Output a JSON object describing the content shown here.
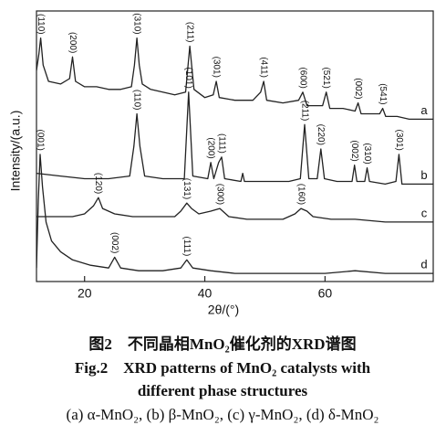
{
  "chart_data": {
    "type": "line",
    "x_label": "2θ/(°)",
    "y_label": "Intensity/(a.u.)",
    "xlim": [
      12,
      78
    ],
    "xticks": [
      20,
      40,
      60
    ],
    "ylim": [
      0,
      100
    ],
    "series": [
      {
        "name": "a",
        "color": "#222222",
        "x": [
          12,
          12.4,
          12.7,
          13.1,
          14,
          16,
          17.5,
          18,
          18.5,
          20,
          22,
          24,
          26,
          27.8,
          28.3,
          28.7,
          29.1,
          29.6,
          31,
          33,
          35,
          36.8,
          37.5,
          38.2,
          40,
          41.4,
          41.9,
          42.4,
          45,
          48,
          49.3,
          49.8,
          50.3,
          53,
          55.6,
          56.3,
          57,
          59.6,
          60.2,
          60.8,
          63,
          65,
          65.5,
          66,
          68,
          69.1,
          69.6,
          70.1,
          72,
          74,
          76,
          78
        ],
        "values": [
          78,
          84,
          90,
          80,
          74,
          73,
          75,
          83,
          74,
          72,
          72,
          71,
          71,
          72,
          80,
          90,
          80,
          73,
          71,
          70,
          69,
          70,
          87,
          71,
          68,
          69,
          74,
          68,
          67,
          67,
          70,
          74,
          67,
          66,
          67,
          70,
          65,
          65,
          70,
          64,
          64,
          63,
          66,
          62,
          62,
          62,
          64,
          61,
          61,
          60,
          60,
          60
        ],
        "peaks": [
          {
            "label": "(110)",
            "x": 12.7
          },
          {
            "label": "(200)",
            "x": 18
          },
          {
            "label": "(310)",
            "x": 28.7
          },
          {
            "label": "(211)",
            "x": 37.5
          },
          {
            "label": "(301)",
            "x": 41.9
          },
          {
            "label": "(411)",
            "x": 49.8
          },
          {
            "label": "(600)",
            "x": 56.3
          },
          {
            "label": "(521)",
            "x": 60.2
          },
          {
            "label": "(002)",
            "x": 65.5
          },
          {
            "label": "(541)",
            "x": 69.6
          }
        ]
      },
      {
        "name": "b",
        "color": "#222222",
        "x": [
          12,
          16,
          20,
          24,
          27.5,
          28.2,
          28.7,
          29.2,
          30,
          33,
          36.6,
          37.3,
          38,
          40.5,
          41,
          41.5,
          42.3,
          42.8,
          43.3,
          46,
          46.3,
          46.6,
          50,
          54,
          55.9,
          56.6,
          57.3,
          58.7,
          59.3,
          59.9,
          62,
          64.5,
          64.9,
          65.3,
          66.6,
          67,
          67.4,
          70,
          71.8,
          72.3,
          72.8,
          75,
          78
        ],
        "values": [
          40,
          39,
          38,
          38,
          39,
          50,
          62,
          50,
          39,
          38,
          38,
          70,
          39,
          38,
          44,
          38,
          44,
          46,
          38,
          37,
          40,
          37,
          37,
          37,
          38,
          58,
          38,
          38,
          49,
          38,
          37,
          37,
          43,
          37,
          37,
          42,
          37,
          36,
          37,
          47,
          36,
          36,
          36
        ],
        "peaks": [
          {
            "label": "(110)",
            "x": 28.7
          },
          {
            "label": "(101)",
            "x": 37.3
          },
          {
            "label": "(200)",
            "x": 41
          },
          {
            "label": "(111)",
            "x": 42.8
          },
          {
            "label": "(211)",
            "x": 56.6
          },
          {
            "label": "(220)",
            "x": 59.3
          },
          {
            "label": "(002)",
            "x": 64.9
          },
          {
            "label": "(310)",
            "x": 67
          },
          {
            "label": "(301)",
            "x": 72.3
          }
        ]
      },
      {
        "name": "c",
        "color": "#222222",
        "x": [
          12,
          15,
          18,
          20,
          21.5,
          22.3,
          23,
          25,
          28,
          30,
          33,
          35,
          36,
          37,
          37.8,
          39,
          41,
          42.5,
          44,
          47,
          50,
          53,
          55,
          56,
          57,
          58,
          61,
          65,
          70,
          75,
          78
        ],
        "values": [
          24,
          24,
          24,
          25,
          28,
          31,
          27,
          25,
          24,
          24,
          24,
          24,
          26,
          29,
          27,
          25,
          26,
          27,
          24,
          23,
          23,
          23,
          25,
          27,
          26,
          24,
          23,
          23,
          22,
          22,
          22
        ],
        "peaks": [
          {
            "label": "(120)",
            "x": 22.3
          },
          {
            "label": "(131)",
            "x": 37
          },
          {
            "label": "(300)",
            "x": 42.5
          },
          {
            "label": "(160)",
            "x": 56
          }
        ]
      },
      {
        "name": "d",
        "color": "#222222",
        "x": [
          12,
          12.3,
          12.6,
          13,
          13.6,
          14.5,
          16,
          18,
          21,
          24,
          25,
          26,
          29,
          33,
          36,
          37,
          38,
          41,
          45,
          50,
          55,
          60,
          65,
          70,
          75,
          78
        ],
        "values": [
          5,
          30,
          47,
          35,
          22,
          15,
          11,
          8,
          6,
          5,
          9,
          5,
          4,
          4,
          5,
          8,
          5,
          4,
          3,
          3,
          3,
          3,
          4,
          3,
          3,
          3
        ],
        "peaks": [
          {
            "label": "(001)",
            "x": 12.6
          },
          {
            "label": "(002)",
            "x": 25
          },
          {
            "label": "(111)",
            "x": 37
          }
        ]
      }
    ]
  },
  "caption": {
    "cn": "图2　不同晶相MnO₂催化剂的XRD谱图",
    "en_line1": "Fig.2　XRD patterns of MnO₂ catalysts with",
    "en_line2": "different phase structures",
    "legend": "(a) α-MnO₂, (b) β-MnO₂, (c) γ-MnO₂, (d) δ-MnO₂"
  }
}
